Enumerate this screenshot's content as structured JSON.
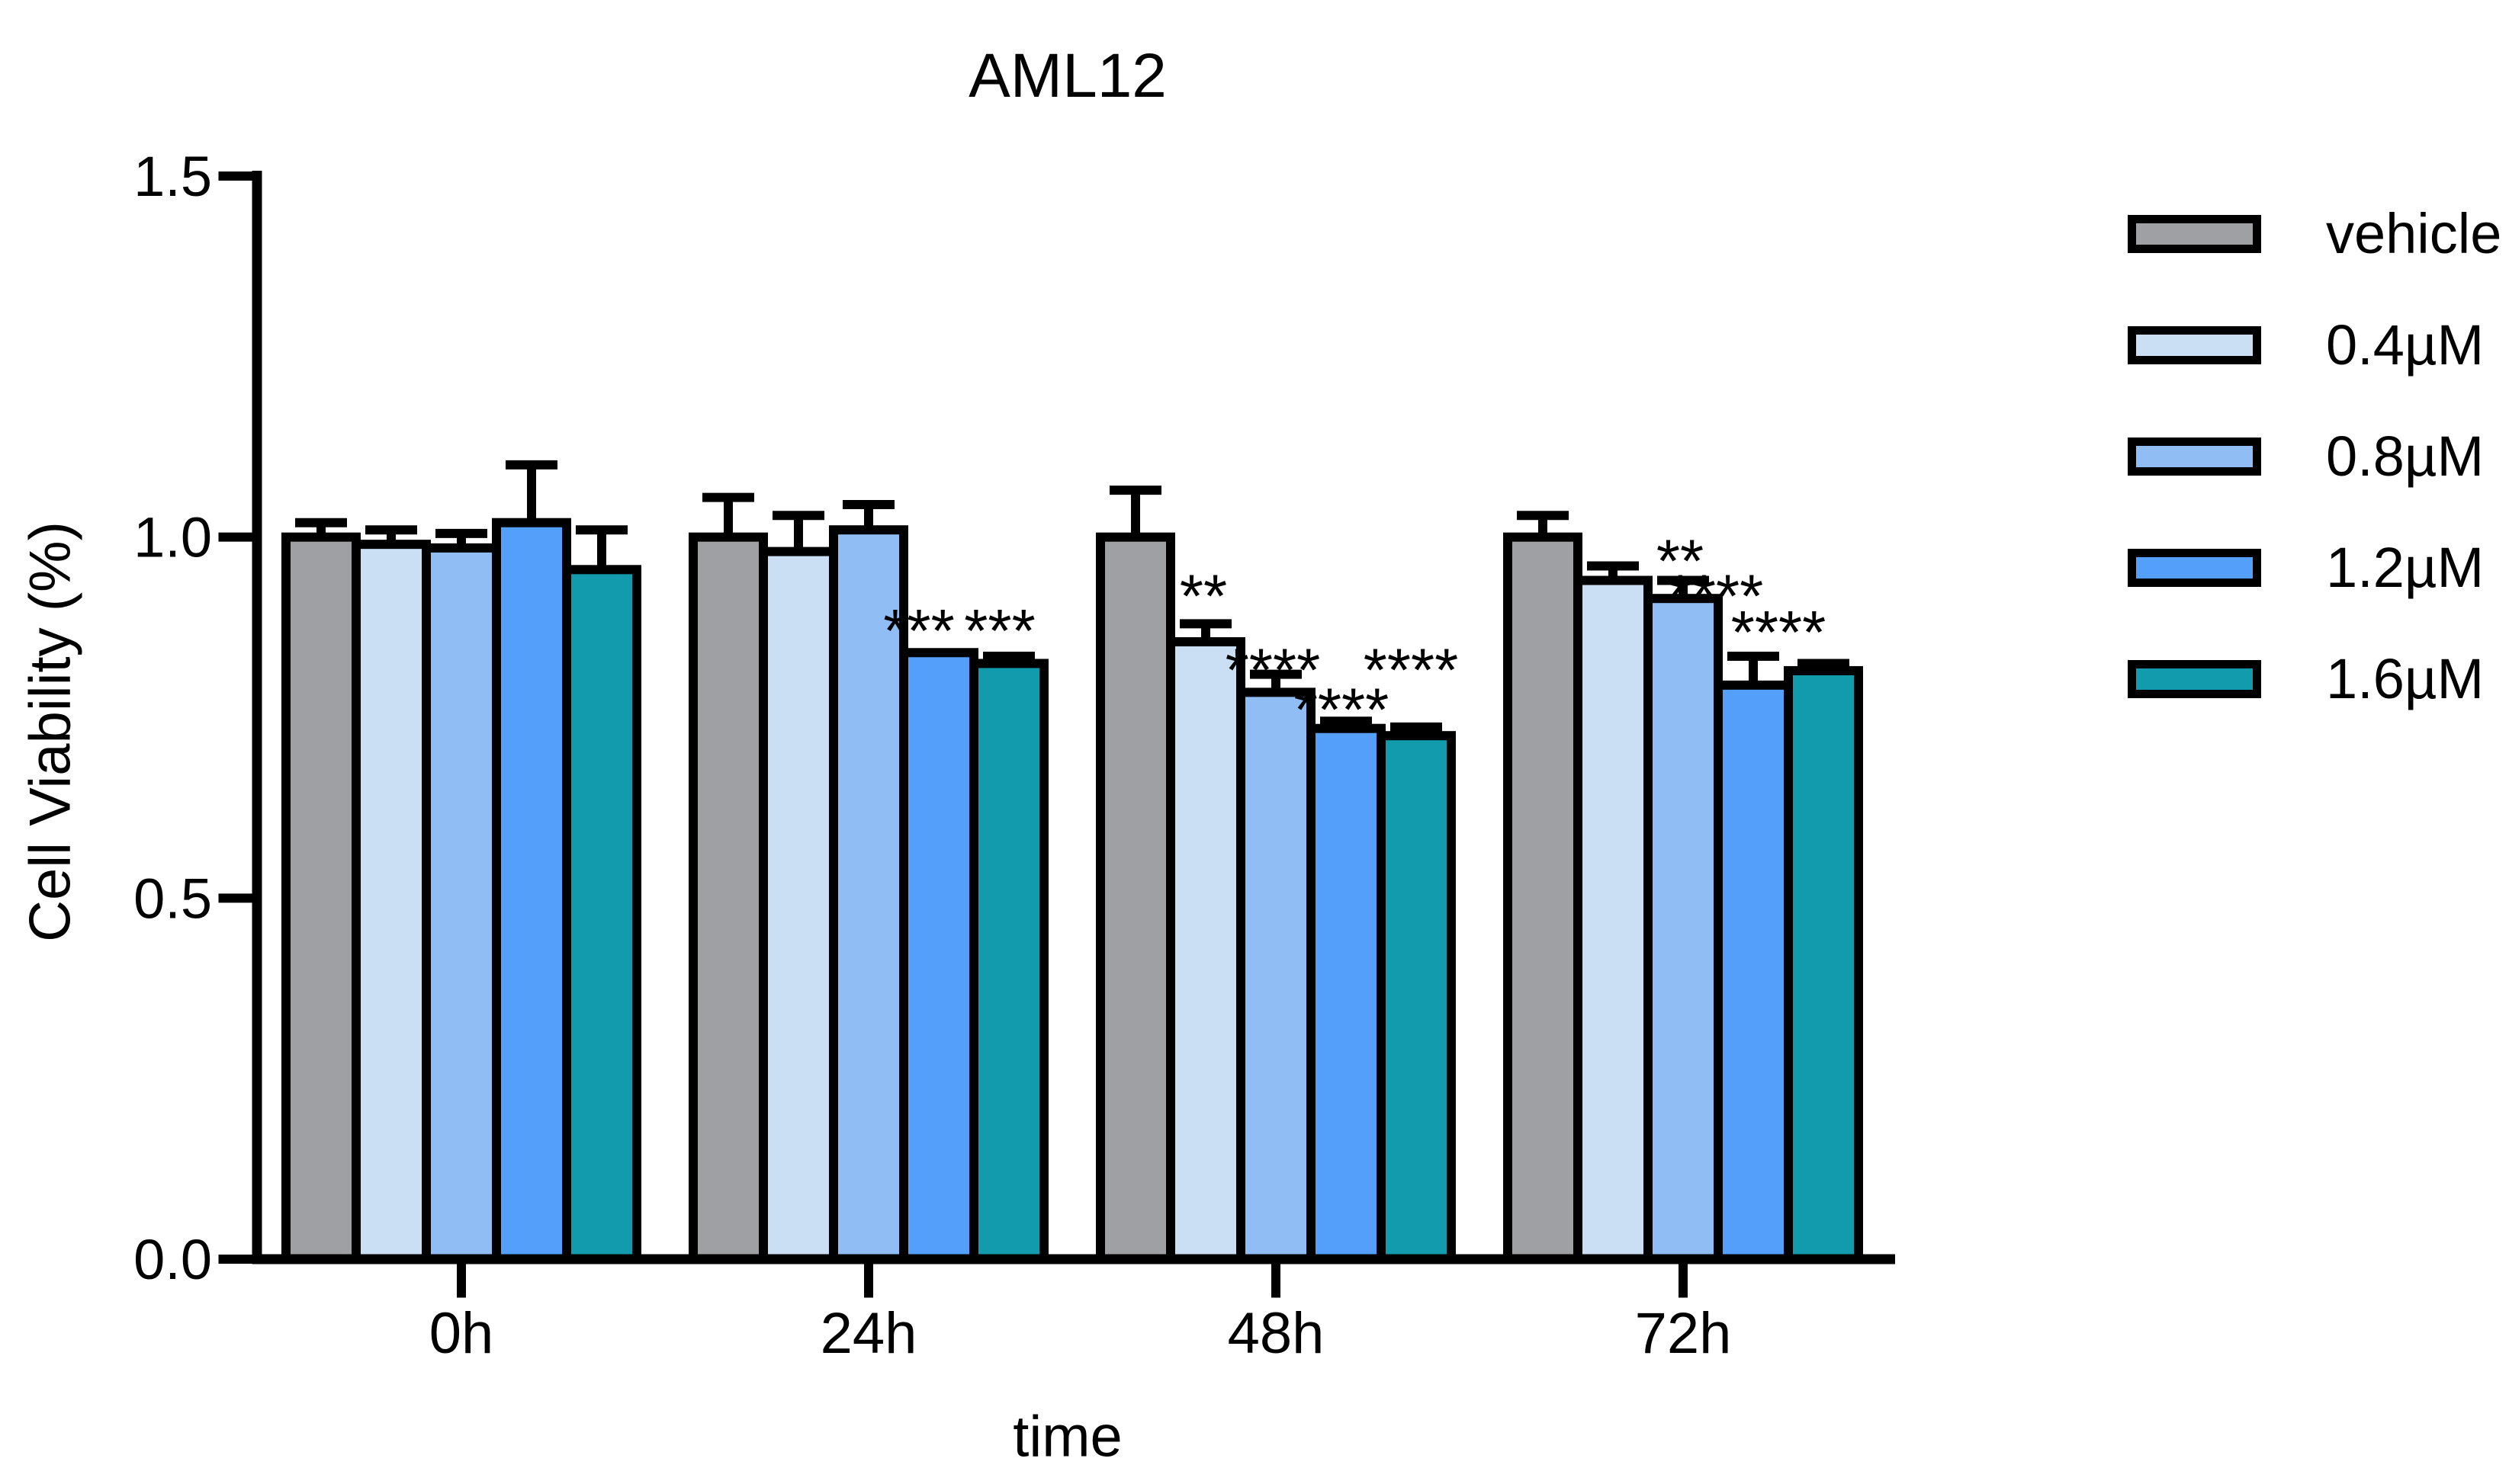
{
  "chart_data": {
    "type": "bar",
    "title": "AML12",
    "xlabel": "time",
    "ylabel": "Cell Viability (%)",
    "categories": [
      "0h",
      "24h",
      "48h",
      "72h"
    ],
    "y_ticks": [
      "0.0",
      "0.5",
      "1.0",
      "1.5"
    ],
    "ylim": [
      0,
      1.5
    ],
    "grid": false,
    "legend_position": "right",
    "error_bars": "upper SD with caps",
    "axis_color": "#000000",
    "series": [
      {
        "name": "vehicle",
        "color": "#9FA0A4",
        "values": [
          1.0,
          1.0,
          1.0,
          1.0
        ],
        "errors": [
          0.02,
          0.055,
          0.065,
          0.03
        ]
      },
      {
        "name": "0.4µM",
        "color": "#CBDFF4",
        "values": [
          0.99,
          0.98,
          0.855,
          0.94
        ],
        "errors": [
          0.02,
          0.05,
          0.025,
          0.02
        ]
      },
      {
        "name": "0.8µM",
        "color": "#90BDF4",
        "values": [
          0.985,
          1.01,
          0.785,
          0.915
        ],
        "errors": [
          0.02,
          0.035,
          0.025,
          0.025
        ]
      },
      {
        "name": "1.2µM",
        "color": "#539FF9",
        "values": [
          1.02,
          0.84,
          0.735,
          0.795
        ],
        "errors": [
          0.08,
          0,
          0.01,
          0.04
        ]
      },
      {
        "name": "1.6µM",
        "color": "#129AAD",
        "values": [
          0.955,
          0.825,
          0.725,
          0.815
        ],
        "errors": [
          0.055,
          0.01,
          0.012,
          0.01
        ]
      }
    ],
    "annotations": [
      {
        "text": "***",
        "category": "24h",
        "series": "1.2µM",
        "y": 0.885,
        "dx": -26
      },
      {
        "text": "***",
        "category": "24h",
        "series": "1.6µM",
        "y": 0.885,
        "dx": -12
      },
      {
        "text": "**",
        "category": "48h",
        "series": "0.4µM",
        "y": 0.933,
        "dx": -3
      },
      {
        "text": "****",
        "category": "48h",
        "series": "0.8µM",
        "y": 0.831,
        "dx": -4
      },
      {
        "text": "****",
        "category": "48h",
        "series": "1.2µM",
        "y": 0.776,
        "dx": -6
      },
      {
        "text": "****",
        "category": "48h",
        "series": "1.6µM",
        "y": 0.831,
        "dx": -7
      },
      {
        "text": "**",
        "category": "72h",
        "series": "0.8µM",
        "y": 0.982,
        "dx": -4
      },
      {
        "text": "****",
        "category": "72h",
        "series": "1.2µM",
        "y": 0.933,
        "dx": -49
      },
      {
        "text": "****",
        "category": "72h",
        "series": "1.6µM",
        "y": 0.883,
        "dx": -59
      }
    ]
  }
}
